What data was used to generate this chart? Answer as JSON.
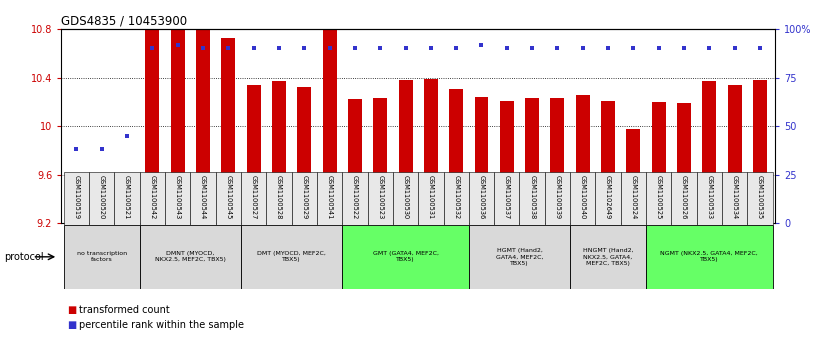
{
  "title": "GDS4835 / 10453900",
  "samples": [
    "GSM1100519",
    "GSM1100520",
    "GSM1100521",
    "GSM1100542",
    "GSM1100543",
    "GSM1100544",
    "GSM1100545",
    "GSM1100527",
    "GSM1100528",
    "GSM1100529",
    "GSM1100541",
    "GSM1100522",
    "GSM1100523",
    "GSM1100530",
    "GSM1100531",
    "GSM1100532",
    "GSM1100536",
    "GSM1100537",
    "GSM1100538",
    "GSM1100539",
    "GSM1100540",
    "GSM1102649",
    "GSM1100524",
    "GSM1100525",
    "GSM1100526",
    "GSM1100533",
    "GSM1100534",
    "GSM1100535"
  ],
  "bar_values": [
    9.55,
    9.58,
    9.57,
    10.8,
    10.79,
    10.8,
    10.73,
    10.34,
    10.37,
    10.32,
    10.8,
    10.22,
    10.23,
    10.38,
    10.39,
    10.31,
    10.24,
    10.21,
    10.23,
    10.23,
    10.26,
    10.21,
    9.98,
    10.2,
    10.19,
    10.37,
    10.34,
    10.38
  ],
  "percentile_values": [
    38,
    38,
    45,
    90,
    92,
    90,
    90,
    90,
    90,
    90,
    90,
    90,
    90,
    90,
    90,
    90,
    92,
    90,
    90,
    90,
    90,
    90,
    90,
    90,
    90,
    90,
    90,
    90
  ],
  "bar_color": "#cc0000",
  "percentile_color": "#3333cc",
  "ymin": 9.2,
  "ymax": 10.8,
  "yticks": [
    9.2,
    9.6,
    10.0,
    10.4,
    10.8
  ],
  "ytick_labels": [
    "9.2",
    "9.6",
    "10",
    "10.4",
    "10.8"
  ],
  "y2ticks": [
    0,
    25,
    50,
    75,
    100
  ],
  "y2tick_labels": [
    "0",
    "25",
    "50",
    "75",
    "100%"
  ],
  "protocol_groups": [
    {
      "label": "no transcription\nfactors",
      "start": 0,
      "end": 3,
      "color": "#d9d9d9"
    },
    {
      "label": "DMNT (MYOCD,\nNKX2.5, MEF2C, TBX5)",
      "start": 3,
      "end": 7,
      "color": "#d9d9d9"
    },
    {
      "label": "DMT (MYOCD, MEF2C,\nTBX5)",
      "start": 7,
      "end": 11,
      "color": "#d9d9d9"
    },
    {
      "label": "GMT (GATA4, MEF2C,\nTBX5)",
      "start": 11,
      "end": 16,
      "color": "#66ff66"
    },
    {
      "label": "HGMT (Hand2,\nGATA4, MEF2C,\nTBX5)",
      "start": 16,
      "end": 20,
      "color": "#d9d9d9"
    },
    {
      "label": "HNGMT (Hand2,\nNKX2.5, GATA4,\nMEF2C, TBX5)",
      "start": 20,
      "end": 23,
      "color": "#d9d9d9"
    },
    {
      "label": "NGMT (NKX2.5, GATA4, MEF2C,\nTBX5)",
      "start": 23,
      "end": 28,
      "color": "#66ff66"
    }
  ],
  "protocol_label": "protocol",
  "legend_bar_label": "transformed count",
  "legend_dot_label": "percentile rank within the sample"
}
